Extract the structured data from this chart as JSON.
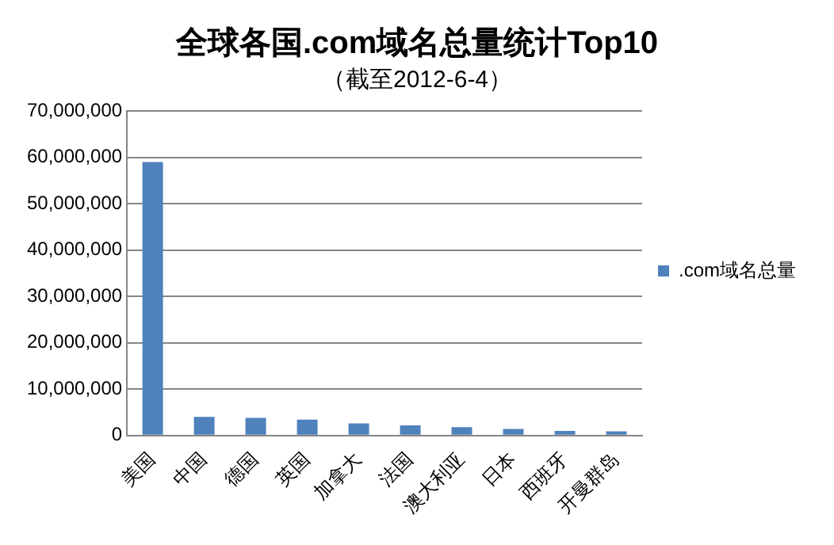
{
  "chart_data": {
    "type": "bar",
    "title": "全球各国.com域名总量统计Top10",
    "subtitle": "（截至2012-6-4）",
    "categories": [
      "美国",
      "中国",
      "德国",
      "英国",
      "加拿大",
      "法国",
      "澳大利亚",
      "日本",
      "西班牙",
      "开曼群岛"
    ],
    "series": [
      {
        "name": ".com域名总量",
        "color": "#4f81bd",
        "values": [
          59000000,
          4000000,
          3800000,
          3400000,
          2600000,
          2200000,
          1800000,
          1400000,
          1000000,
          900000
        ]
      }
    ],
    "ylim": [
      0,
      70000000
    ],
    "yticks": [
      0,
      {
        "value": 10000000,
        "label": "10,000,000"
      },
      {
        "value": 20000000,
        "label": "20,000,000"
      },
      {
        "value": 30000000,
        "label": "30,000,000"
      },
      {
        "value": 40000000,
        "label": "40,000,000"
      },
      {
        "value": 50000000,
        "label": "50,000,000"
      },
      {
        "value": 60000000,
        "label": "60,000,000"
      },
      {
        "value": 70000000,
        "label": "70,000,000"
      }
    ],
    "grid": "y",
    "legend": "right"
  }
}
